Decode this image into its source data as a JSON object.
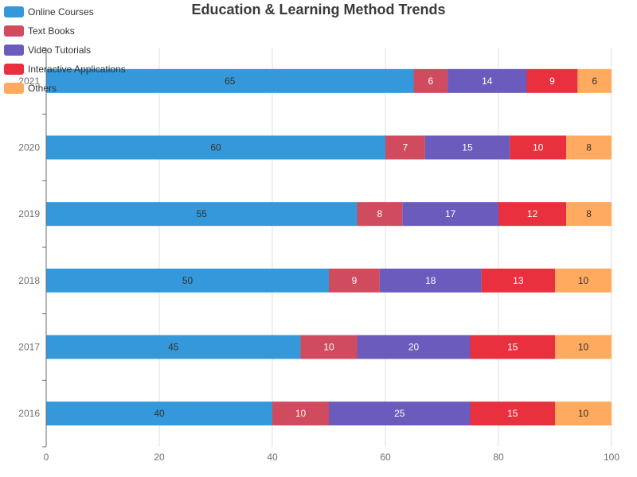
{
  "chart_data": {
    "type": "bar",
    "orientation": "horizontal",
    "stacked": true,
    "title": "Education & Learning Method Trends",
    "categories": [
      "2016",
      "2017",
      "2018",
      "2019",
      "2020",
      "2021"
    ],
    "series": [
      {
        "name": "Online Courses",
        "color": "#3498db",
        "label_color": "#333333",
        "values": [
          40,
          45,
          50,
          55,
          60,
          65
        ]
      },
      {
        "name": "Text Books",
        "color": "#d14b5f",
        "label_color": "#ffffff",
        "values": [
          10,
          10,
          9,
          8,
          7,
          6
        ]
      },
      {
        "name": "Video Tutorials",
        "color": "#6a5bbd",
        "label_color": "#ffffff",
        "values": [
          25,
          20,
          18,
          17,
          15,
          14
        ]
      },
      {
        "name": "Interactive Applications",
        "color": "#e8303e",
        "label_color": "#ffffff",
        "values": [
          15,
          15,
          13,
          12,
          10,
          9
        ]
      },
      {
        "name": "Others",
        "color": "#ffaa5e",
        "label_color": "#333333",
        "values": [
          10,
          10,
          10,
          8,
          8,
          6
        ]
      }
    ],
    "xlim": [
      0,
      100
    ],
    "xticks": [
      "0",
      "20",
      "40",
      "60",
      "80",
      "100"
    ],
    "grid": true,
    "legend_position": "top-left"
  }
}
